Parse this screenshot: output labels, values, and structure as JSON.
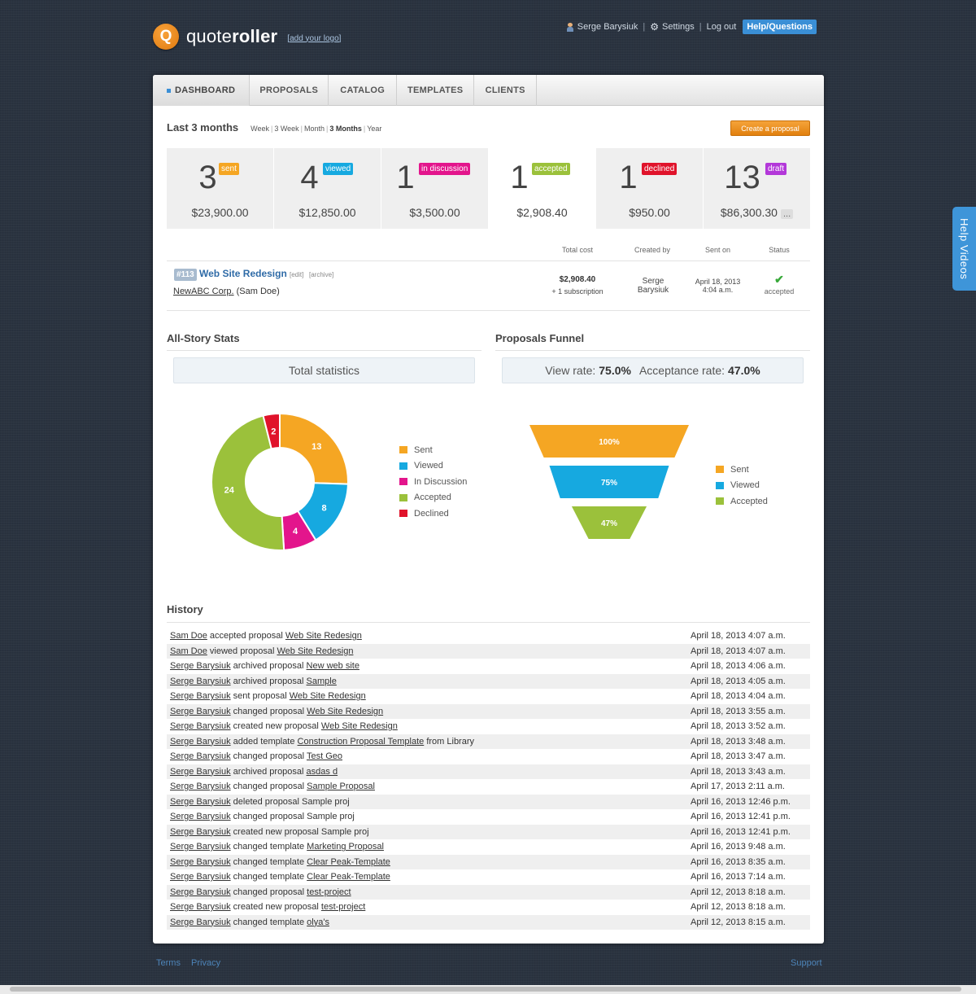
{
  "header": {
    "logo_letter": "Q",
    "logo_text_light": "quote",
    "logo_text_bold": "roller",
    "add_logo": "[add your logo]",
    "user": "Serge Barysiuk",
    "settings": "Settings",
    "logout": "Log out",
    "help": "Help/Questions",
    "separator": "|"
  },
  "help_videos": "Help Videos",
  "tabs": [
    {
      "label": "DASHBOARD",
      "active": true
    },
    {
      "label": "PROPOSALS"
    },
    {
      "label": "CATALOG"
    },
    {
      "label": "TEMPLATES"
    },
    {
      "label": "CLIENTS"
    }
  ],
  "period": {
    "title": "Last 3 months",
    "options": [
      "Week",
      "3 Week",
      "Month",
      "3 Months",
      "Year"
    ],
    "active": "3 Months",
    "separator": "|"
  },
  "create_button": "Create a proposal",
  "stats": [
    {
      "count": "3",
      "badge": "sent",
      "amount": "$23,900.00",
      "color": "#f5a623"
    },
    {
      "count": "4",
      "badge": "viewed",
      "amount": "$12,850.00",
      "color": "#16a9e0"
    },
    {
      "count": "1",
      "badge": "in discussion",
      "amount": "$3,500.00",
      "color": "#e3158c"
    },
    {
      "count": "1",
      "badge": "accepted",
      "amount": "$2,908.40",
      "color": "#9bc13b"
    },
    {
      "count": "1",
      "badge": "declined",
      "amount": "$950.00",
      "color": "#e0132b"
    },
    {
      "count": "13",
      "badge": "draft",
      "amount": "$86,300.30",
      "color": "#b338d9",
      "more": "..."
    }
  ],
  "proposal_table": {
    "headers": [
      "Total cost",
      "Created by",
      "Sent on",
      "Status"
    ],
    "row": {
      "id": "#113",
      "name": "Web Site Redesign",
      "edit": "[edit]",
      "archive": "[archive]",
      "client": "NewABC Corp.",
      "contact": "(Sam Doe)",
      "total": "$2,908.40",
      "subscription": "+ 1 subscription",
      "creator": "Serge Barysiuk",
      "sent_date": "April 18, 2013",
      "sent_time": "4:04 a.m.",
      "status": "accepted"
    }
  },
  "all_story": {
    "title": "All-Story Stats",
    "box": "Total statistics"
  },
  "funnel": {
    "title": "Proposals Funnel",
    "view_label": "View rate:",
    "view_value": "75.0%",
    "accept_label": "Acceptance rate:",
    "accept_value": "47.0%"
  },
  "chart_data": [
    {
      "type": "pie",
      "variant": "donut",
      "categories": [
        "Sent",
        "Viewed",
        "In Discussion",
        "Accepted",
        "Declined"
      ],
      "values": [
        13,
        8,
        4,
        24,
        2
      ],
      "colors": [
        "#f5a623",
        "#16a9e0",
        "#e3158c",
        "#9bc13b",
        "#e0132b"
      ],
      "legend": "right"
    },
    {
      "type": "bar",
      "variant": "funnel",
      "categories": [
        "Sent",
        "Viewed",
        "Accepted"
      ],
      "values": [
        100,
        75,
        47
      ],
      "labels": [
        "100%",
        "75%",
        "47%"
      ],
      "colors": [
        "#f5a623",
        "#16a9e0",
        "#9bc13b"
      ],
      "legend": "right"
    }
  ],
  "history": {
    "title": "History",
    "rows": [
      {
        "actor": "Sam Doe",
        "action": " accepted proposal ",
        "target": "Web Site Redesign",
        "suffix": "",
        "target_link": true,
        "date": "April 18, 2013 4:07 a.m."
      },
      {
        "actor": "Sam Doe",
        "action": " viewed proposal ",
        "target": "Web Site Redesign",
        "suffix": "",
        "target_link": true,
        "date": "April 18, 2013 4:07 a.m."
      },
      {
        "actor": "Serge Barysiuk",
        "action": " archived proposal ",
        "target": "New web site",
        "suffix": "",
        "target_link": true,
        "date": "April 18, 2013 4:06 a.m."
      },
      {
        "actor": "Serge Barysiuk",
        "action": " archived proposal ",
        "target": "Sample",
        "suffix": "",
        "target_link": true,
        "date": "April 18, 2013 4:05 a.m."
      },
      {
        "actor": "Serge Barysiuk",
        "action": " sent proposal ",
        "target": "Web Site Redesign",
        "suffix": "",
        "target_link": true,
        "date": "April 18, 2013 4:04 a.m."
      },
      {
        "actor": "Serge Barysiuk",
        "action": " changed proposal ",
        "target": "Web Site Redesign",
        "suffix": "",
        "target_link": true,
        "date": "April 18, 2013 3:55 a.m."
      },
      {
        "actor": "Serge Barysiuk",
        "action": " created new proposal ",
        "target": "Web Site Redesign",
        "suffix": "",
        "target_link": true,
        "date": "April 18, 2013 3:52 a.m."
      },
      {
        "actor": "Serge Barysiuk",
        "action": " added template ",
        "target": "Construction Proposal Template",
        "suffix": " from Library",
        "target_link": true,
        "date": "April 18, 2013 3:48 a.m."
      },
      {
        "actor": "Serge Barysiuk",
        "action": " changed proposal ",
        "target": "Test Geo",
        "suffix": "",
        "target_link": true,
        "date": "April 18, 2013 3:47 a.m."
      },
      {
        "actor": "Serge Barysiuk",
        "action": " archived proposal ",
        "target": "asdas d",
        "suffix": "",
        "target_link": true,
        "date": "April 18, 2013 3:43 a.m."
      },
      {
        "actor": "Serge Barysiuk",
        "action": " changed proposal ",
        "target": "Sample Proposal",
        "suffix": "",
        "target_link": true,
        "date": "April 17, 2013 2:11 a.m."
      },
      {
        "actor": "Serge Barysiuk",
        "action": " deleted proposal ",
        "target": "Sample proj",
        "suffix": "",
        "target_link": false,
        "date": "April 16, 2013 12:46 p.m."
      },
      {
        "actor": "Serge Barysiuk",
        "action": " changed proposal ",
        "target": "Sample proj",
        "suffix": "",
        "target_link": false,
        "date": "April 16, 2013 12:41 p.m."
      },
      {
        "actor": "Serge Barysiuk",
        "action": " created new proposal ",
        "target": "Sample proj",
        "suffix": "",
        "target_link": false,
        "date": "April 16, 2013 12:41 p.m."
      },
      {
        "actor": "Serge Barysiuk",
        "action": " changed template ",
        "target": "Marketing Proposal",
        "suffix": "",
        "target_link": true,
        "date": "April 16, 2013 9:48 a.m."
      },
      {
        "actor": "Serge Barysiuk",
        "action": " changed template ",
        "target": "Clear Peak-Template",
        "suffix": "",
        "target_link": true,
        "date": "April 16, 2013 8:35 a.m."
      },
      {
        "actor": "Serge Barysiuk",
        "action": " changed template ",
        "target": "Clear Peak-Template",
        "suffix": "",
        "target_link": true,
        "date": "April 16, 2013 7:14 a.m."
      },
      {
        "actor": "Serge Barysiuk",
        "action": " changed proposal ",
        "target": "test-project",
        "suffix": "",
        "target_link": true,
        "date": "April 12, 2013 8:18 a.m."
      },
      {
        "actor": "Serge Barysiuk",
        "action": " created new proposal ",
        "target": "test-project",
        "suffix": "",
        "target_link": true,
        "date": "April 12, 2013 8:18 a.m."
      },
      {
        "actor": "Serge Barysiuk",
        "action": " changed template ",
        "target": "olya's",
        "suffix": "",
        "target_link": true,
        "date": "April 12, 2013 8:15 a.m."
      }
    ]
  },
  "footer": {
    "terms": "Terms",
    "privacy": "Privacy",
    "support": "Support"
  }
}
